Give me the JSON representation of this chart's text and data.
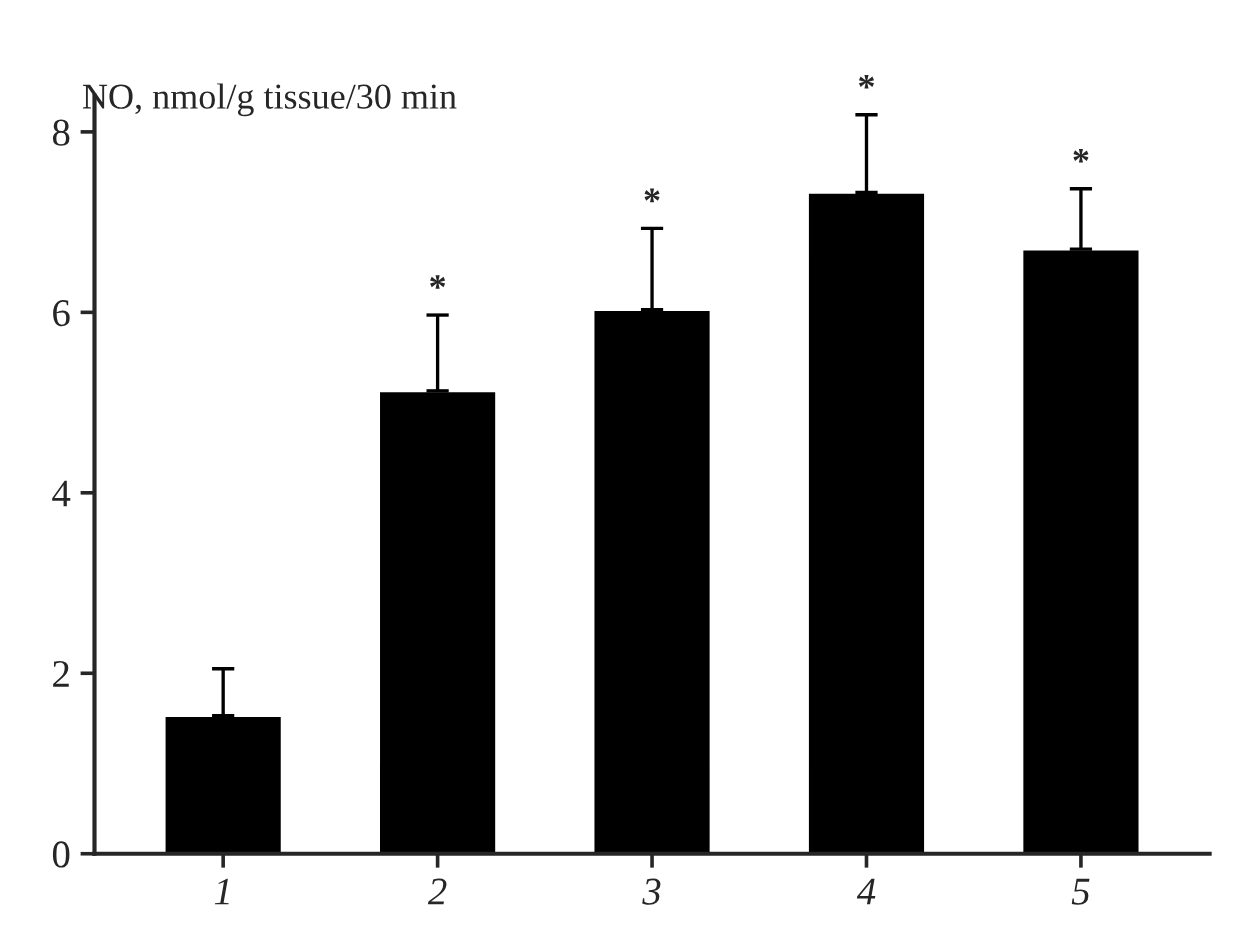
{
  "chart_data": {
    "type": "bar",
    "ylabel": "NO, nmol/g tissue/30 min",
    "categories": [
      "1",
      "2",
      "3",
      "4",
      "5"
    ],
    "values": [
      1.53,
      5.13,
      6.03,
      7.33,
      6.7
    ],
    "errors": [
      [
        1.53,
        2.05
      ],
      [
        5.13,
        5.97
      ],
      [
        6.03,
        6.93
      ],
      [
        7.33,
        8.19
      ],
      [
        6.7,
        7.37
      ]
    ],
    "color": "#000000",
    "ylim": [
      0,
      8.4
    ],
    "yticks": [
      0,
      2,
      4,
      6,
      8
    ],
    "grid": false,
    "annotations": [
      {
        "text": "*",
        "x": "2",
        "y": 5.97
      },
      {
        "text": "*",
        "x": "3",
        "y": 6.93
      },
      {
        "text": "*",
        "x": "4",
        "y": 8.19
      },
      {
        "text": "*",
        "x": "5",
        "y": 7.37
      }
    ]
  }
}
